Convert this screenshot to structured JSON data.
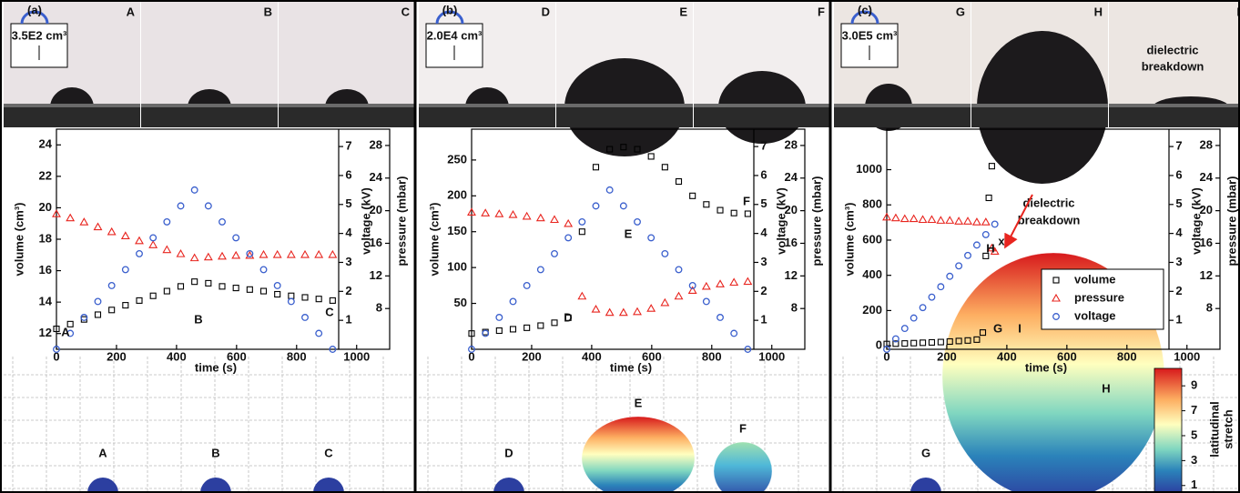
{
  "panels": [
    {
      "label": "(a)",
      "inset": "3.5E2 cm³",
      "photos": [
        "A",
        "B",
        "C"
      ],
      "sim_labels": [
        "A",
        "B",
        "C"
      ]
    },
    {
      "label": "(b)",
      "inset": "2.0E4 cm³",
      "photos": [
        "D",
        "E",
        "F"
      ],
      "sim_labels": [
        "D",
        "E",
        "F"
      ]
    },
    {
      "label": "(c)",
      "inset": "3.0E5 cm³",
      "photos": [
        "G",
        "H",
        "I"
      ],
      "photo_note": [
        "dielectric",
        "breakdown"
      ],
      "sim_labels": [
        "G",
        "H"
      ]
    }
  ],
  "chart_data": [
    {
      "type": "scatter",
      "xlabel": "time (s)",
      "ylabel": "volume (cm³)",
      "y2label": "voltage (kV)",
      "y3label": "pressure (mbar)",
      "xlim": [
        0,
        1110
      ],
      "xticks": [
        0,
        200,
        400,
        600,
        800,
        1000
      ],
      "ylim": [
        11,
        25
      ],
      "yticks": [
        12,
        14,
        16,
        18,
        20,
        22,
        24
      ],
      "y2lim": [
        0,
        7.6
      ],
      "y2ticks": [
        1,
        2,
        3,
        4,
        5,
        6,
        7
      ],
      "y3lim": [
        3,
        30
      ],
      "y3ticks": [
        8,
        12,
        16,
        20,
        24,
        28
      ],
      "annotations": [
        "A",
        "B",
        "C"
      ],
      "series": [
        {
          "name": "volume",
          "color": "#000000",
          "marker": "square",
          "x": [
            0,
            46,
            92,
            138,
            184,
            230,
            276,
            322,
            368,
            414,
            460,
            506,
            552,
            598,
            644,
            690,
            736,
            782,
            828,
            874,
            920
          ],
          "values": [
            12.3,
            12.6,
            12.9,
            13.2,
            13.5,
            13.8,
            14.1,
            14.4,
            14.7,
            15.0,
            15.3,
            15.2,
            15.0,
            14.9,
            14.8,
            14.7,
            14.5,
            14.4,
            14.3,
            14.2,
            14.1
          ]
        },
        {
          "name": "pressure",
          "color": "#e8251f",
          "marker": "triangle",
          "axis": "y3",
          "x": [
            0,
            46,
            92,
            138,
            184,
            230,
            276,
            322,
            368,
            414,
            460,
            506,
            552,
            598,
            644,
            690,
            736,
            782,
            828,
            874,
            920
          ],
          "values": [
            19.6,
            19.1,
            18.6,
            18.0,
            17.4,
            16.9,
            16.3,
            15.8,
            15.2,
            14.7,
            14.2,
            14.3,
            14.4,
            14.5,
            14.5,
            14.6,
            14.6,
            14.6,
            14.6,
            14.6,
            14.6
          ]
        },
        {
          "name": "voltage",
          "color": "#3a5fcd",
          "marker": "circle",
          "axis": "y2",
          "x": [
            0,
            46,
            92,
            138,
            184,
            230,
            276,
            322,
            368,
            414,
            460,
            506,
            552,
            598,
            644,
            690,
            736,
            782,
            828,
            874,
            920
          ],
          "values": [
            0,
            0.55,
            1.1,
            1.65,
            2.2,
            2.75,
            3.3,
            3.85,
            4.4,
            4.95,
            5.5,
            4.95,
            4.4,
            3.85,
            3.3,
            2.75,
            2.2,
            1.65,
            1.1,
            0.55,
            0
          ]
        }
      ]
    },
    {
      "type": "scatter",
      "xlabel": "time (s)",
      "ylabel": "volume (cm³)",
      "y2label": "voltage (kV)",
      "y3label": "pressure (mbar)",
      "xlim": [
        0,
        1110
      ],
      "xticks": [
        0,
        200,
        400,
        600,
        800,
        1000
      ],
      "ylim": [
        -14,
        293
      ],
      "yticks": [
        50,
        100,
        150,
        200,
        250
      ],
      "y2lim": [
        0,
        7.6
      ],
      "y2ticks": [
        1,
        2,
        3,
        4,
        5,
        6,
        7
      ],
      "y3lim": [
        3,
        30
      ],
      "y3ticks": [
        8,
        12,
        16,
        20,
        24,
        28
      ],
      "annotations": [
        "D",
        "E",
        "F"
      ],
      "series": [
        {
          "name": "volume",
          "color": "#000000",
          "marker": "square",
          "x": [
            0,
            46,
            92,
            138,
            184,
            230,
            276,
            322,
            368,
            414,
            460,
            506,
            552,
            598,
            644,
            690,
            736,
            782,
            828,
            874,
            920
          ],
          "values": [
            8,
            10,
            12,
            14,
            16,
            19,
            23,
            30,
            150,
            240,
            265,
            268,
            265,
            255,
            240,
            220,
            200,
            188,
            180,
            176,
            175
          ]
        },
        {
          "name": "pressure",
          "color": "#e8251f",
          "marker": "triangle",
          "axis": "y3",
          "x": [
            0,
            46,
            92,
            138,
            184,
            230,
            276,
            322,
            368,
            414,
            460,
            506,
            552,
            598,
            644,
            690,
            736,
            782,
            828,
            874,
            920
          ],
          "values": [
            19.8,
            19.7,
            19.6,
            19.5,
            19.3,
            19.1,
            18.9,
            18.4,
            9.5,
            7.9,
            7.5,
            7.5,
            7.6,
            8.0,
            8.7,
            9.5,
            10.2,
            10.7,
            11.0,
            11.2,
            11.3
          ]
        },
        {
          "name": "voltage",
          "color": "#3a5fcd",
          "marker": "circle",
          "axis": "y2",
          "x": [
            0,
            46,
            92,
            138,
            184,
            230,
            276,
            322,
            368,
            414,
            460,
            506,
            552,
            598,
            644,
            690,
            736,
            782,
            828,
            874,
            920
          ],
          "values": [
            0,
            0.55,
            1.1,
            1.65,
            2.2,
            2.75,
            3.3,
            3.85,
            4.4,
            4.95,
            5.5,
            4.95,
            4.4,
            3.85,
            3.3,
            2.75,
            2.2,
            1.65,
            1.1,
            0.55,
            0
          ]
        }
      ]
    },
    {
      "type": "scatter",
      "xlabel": "time (s)",
      "ylabel": "volume (cm³)",
      "y2label": "voltage (kV)",
      "y3label": "pressure (mbar)",
      "xlim": [
        0,
        1110
      ],
      "xticks": [
        0,
        200,
        400,
        600,
        800,
        1000
      ],
      "ylim": [
        -20,
        1230
      ],
      "yticks": [
        0,
        200,
        400,
        600,
        800,
        1000
      ],
      "y2lim": [
        0,
        7.6
      ],
      "y2ticks": [
        1,
        2,
        3,
        4,
        5,
        6,
        7
      ],
      "y3lim": [
        3,
        30
      ],
      "y3ticks": [
        8,
        12,
        16,
        20,
        24,
        28
      ],
      "legend": "lower right",
      "annotations": [
        "H",
        "G",
        "I",
        "x",
        "dielectric",
        "breakdown"
      ],
      "series": [
        {
          "name": "volume",
          "color": "#000000",
          "marker": "square",
          "x": [
            0,
            30,
            60,
            90,
            120,
            150,
            180,
            210,
            240,
            270,
            300,
            320,
            330,
            340,
            350
          ],
          "values": [
            10,
            12,
            13,
            15,
            17,
            19,
            21,
            24,
            27,
            30,
            35,
            75,
            510,
            840,
            1020
          ]
        },
        {
          "name": "pressure",
          "color": "#e8251f",
          "marker": "triangle",
          "axis": "y3",
          "x": [
            0,
            30,
            60,
            90,
            120,
            150,
            180,
            210,
            240,
            270,
            300,
            330,
            350,
            360
          ],
          "values": [
            19.2,
            19.1,
            19.0,
            19.0,
            18.9,
            18.9,
            18.8,
            18.8,
            18.7,
            18.7,
            18.6,
            18.6,
            15.4,
            15.0
          ]
        },
        {
          "name": "voltage",
          "color": "#3a5fcd",
          "marker": "circle",
          "axis": "y2",
          "x": [
            0,
            30,
            60,
            90,
            120,
            150,
            180,
            210,
            240,
            270,
            300,
            330,
            360
          ],
          "values": [
            0,
            0.36,
            0.72,
            1.08,
            1.44,
            1.8,
            2.16,
            2.52,
            2.88,
            3.24,
            3.6,
            3.96,
            4.32
          ]
        }
      ]
    }
  ],
  "colorbar": {
    "label": [
      "latitudinal",
      "stretch"
    ],
    "lim": [
      0.4,
      10.4
    ],
    "ticks": [
      1,
      3,
      5,
      7,
      9
    ]
  }
}
